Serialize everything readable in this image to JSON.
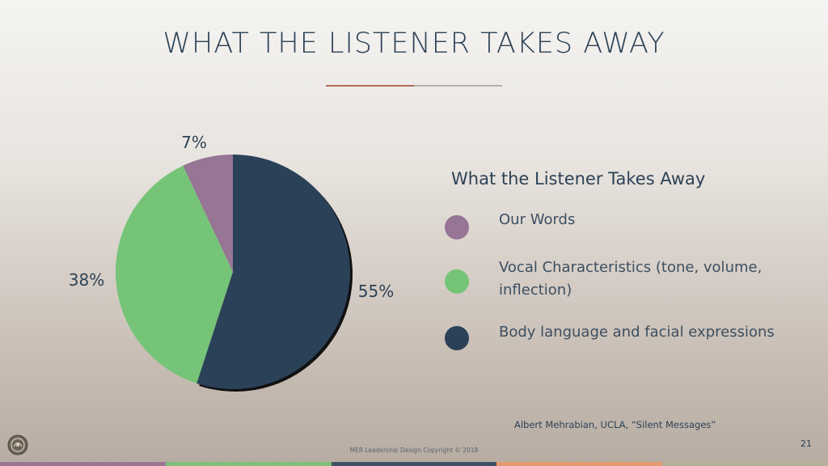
{
  "slide": {
    "title": "WHAT THE LISTENER TAKES AWAY",
    "source": "Albert Mehrabian, UCLA, “Silent Messages”",
    "copyright": "MER Leadership Design Copyright © 2018",
    "page_number": "21",
    "logo_icon": "circular-emblem-icon",
    "bottom_bar_colors": [
      "#9a7595",
      "#7fbf7a",
      "#3f5366",
      "#e59a70",
      "#b5b09a"
    ]
  },
  "chart_data": {
    "type": "pie",
    "title": "What the Listener Takes Away",
    "slices": [
      {
        "label": "Body language and facial expressions",
        "value": 55,
        "display": "55%",
        "color": "#2b4158"
      },
      {
        "label": "Vocal Characteristics (tone, volume, inflection)",
        "value": 38,
        "display": "38%",
        "color": "#76c477"
      },
      {
        "label": "Our Words",
        "value": 7,
        "display": "7%",
        "color": "#977595"
      }
    ],
    "legend_placement": "right"
  },
  "legend": {
    "title": "What the Listener Takes Away",
    "items": [
      {
        "label": "Our Words",
        "color": "#977595"
      },
      {
        "label": "Vocal Characteristics (tone, volume, inflection)",
        "color": "#76c477"
      },
      {
        "label": "Body language and facial expressions",
        "color": "#2b4158"
      }
    ]
  }
}
